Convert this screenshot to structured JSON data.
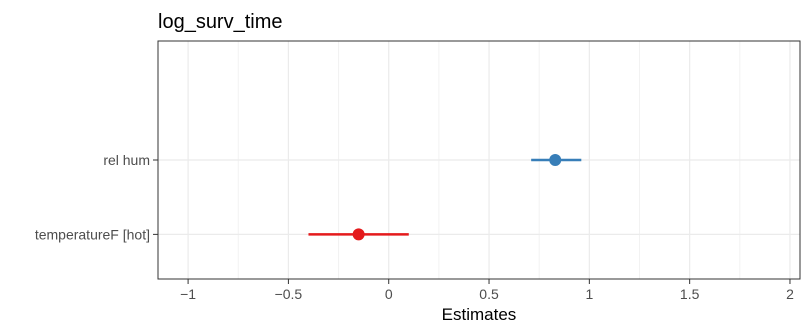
{
  "chart_data": {
    "type": "forest",
    "title": "log_surv_time",
    "xlabel": "Estimates",
    "ylabel": "",
    "xlim": [
      -1.15,
      2.05
    ],
    "x_ticks": [
      -1,
      -0.5,
      0,
      0.5,
      1,
      1.5,
      2
    ],
    "x_tick_labels": [
      "−1",
      "−0.5",
      "0",
      "0.5",
      "1",
      "1.5",
      "2"
    ],
    "grid": true,
    "terms": [
      {
        "label": "rel hum",
        "estimate": 0.83,
        "ci_low": 0.71,
        "ci_high": 0.96,
        "color": "#377eb8"
      },
      {
        "label": "temperatureF [hot]",
        "estimate": -0.15,
        "ci_low": -0.4,
        "ci_high": 0.1,
        "color": "#e41a1c"
      }
    ]
  }
}
